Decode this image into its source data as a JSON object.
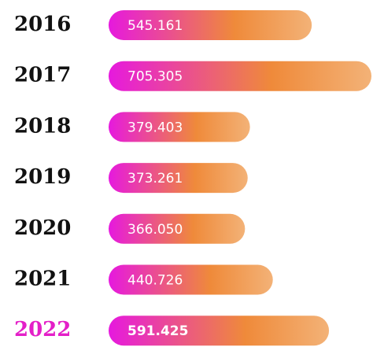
{
  "chart_data": {
    "type": "bar",
    "orientation": "horizontal",
    "categories": [
      "2016",
      "2017",
      "2018",
      "2019",
      "2020",
      "2021",
      "2022"
    ],
    "values": [
      545161,
      705305,
      379403,
      373261,
      366050,
      440726,
      591425
    ],
    "value_labels": [
      "545.161",
      "705.305",
      "379.403",
      "373.261",
      "366.050",
      "440.726",
      "591.425"
    ],
    "colors": [
      "#e619de",
      "#ef8a3a",
      "#f3b277"
    ],
    "highlight": 6,
    "highlight_color": "#e41fc8"
  }
}
